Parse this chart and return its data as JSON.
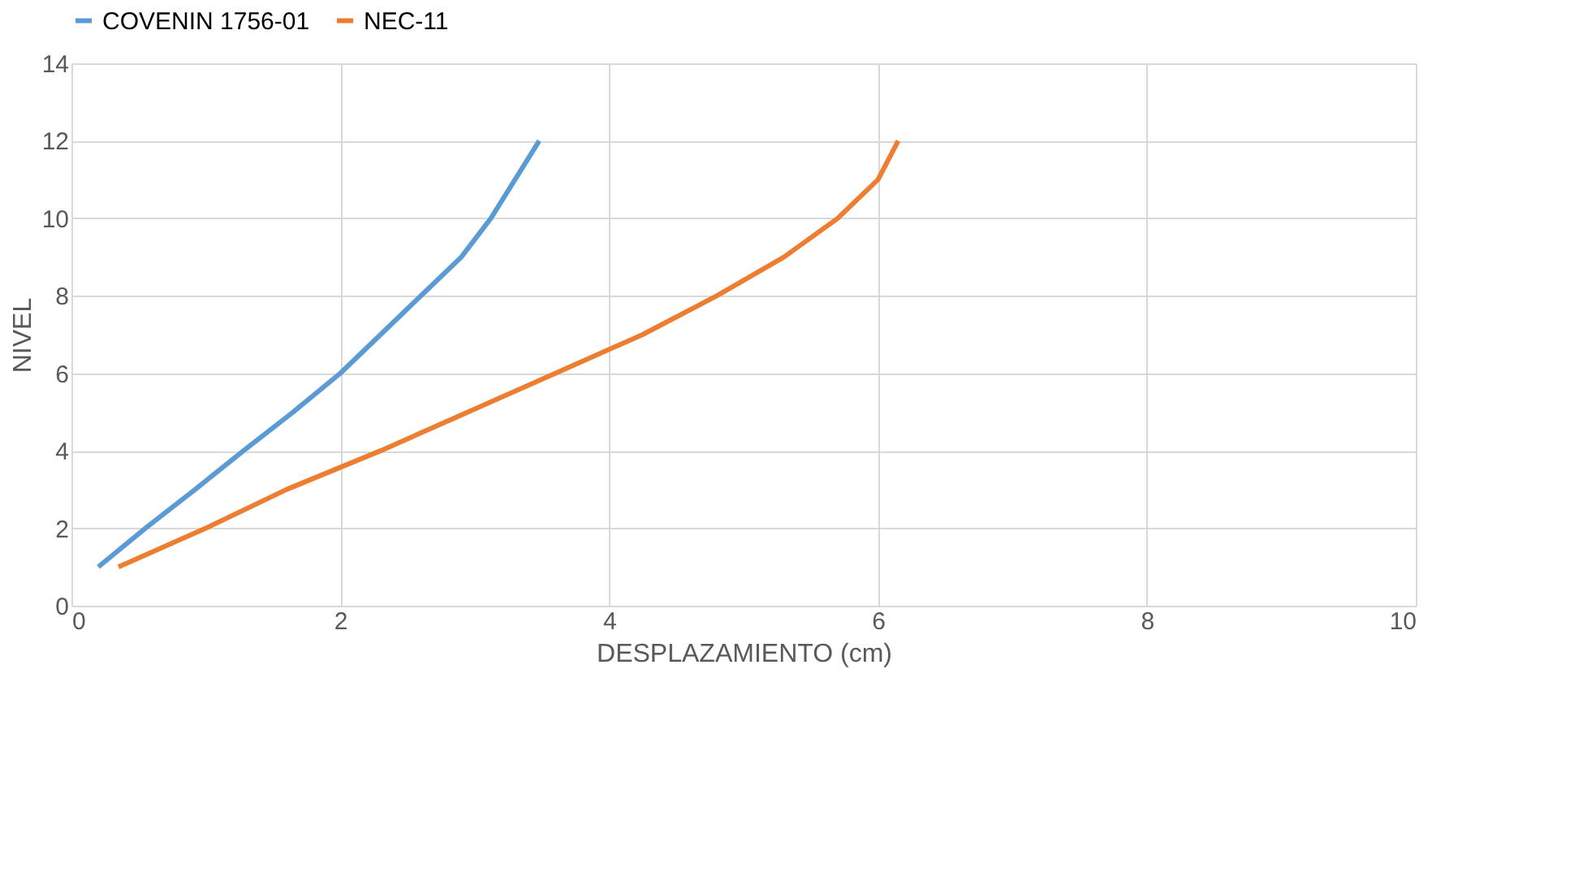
{
  "chart_data": {
    "type": "line",
    "xlabel": "DESPLAZAMIENTO (cm)",
    "ylabel": "NIVEL",
    "series": [
      {
        "name": "COVENIN 1756-01",
        "color": "#5b9bd5",
        "x": [
          0.2,
          0.55,
          0.92,
          1.28,
          1.65,
          2.0,
          2.3,
          2.6,
          2.9,
          3.12,
          3.3,
          3.48
        ],
        "values": [
          1,
          2,
          3,
          4,
          5,
          6,
          7,
          8,
          9,
          10,
          11,
          12
        ]
      },
      {
        "name": "NEC-11",
        "color": "#ed7d31",
        "x": [
          0.35,
          1.0,
          1.6,
          2.3,
          2.95,
          3.6,
          4.25,
          4.8,
          5.3,
          5.7,
          6.0,
          6.15
        ],
        "values": [
          1,
          2,
          3,
          4,
          5,
          6,
          7,
          8,
          9,
          10,
          11,
          12
        ]
      }
    ],
    "xlim": [
      0,
      10
    ],
    "xticks": [
      0,
      2,
      4,
      6,
      8,
      10
    ],
    "ylim": [
      0,
      14
    ],
    "yticks": [
      0,
      2,
      4,
      6,
      8,
      10,
      12,
      14
    ],
    "grid": true,
    "legend": "top",
    "marker": "none",
    "line_style": "solid"
  }
}
